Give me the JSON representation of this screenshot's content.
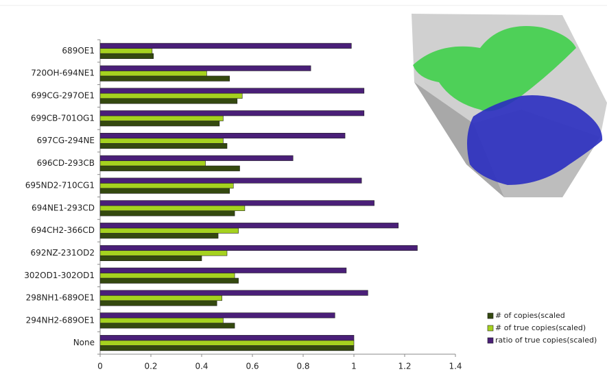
{
  "chart_data": {
    "type": "hbar",
    "categories": [
      "689OE1",
      "720OH-694NE1",
      "699CG-297OE1",
      "699CB-701OG1",
      "697CG-294NE",
      "696CD-293CB",
      "695ND2-710CG1",
      "694NE1-293CD",
      "694CH2-366CD",
      "692NZ-231OD2",
      "302OD1-302OD1",
      "298NH1-689OE1",
      "294NH2-689OE1",
      "None"
    ],
    "series": [
      {
        "name": "# of copies(scaled",
        "color": "#34490f",
        "values": [
          0.21,
          0.51,
          0.54,
          0.47,
          0.5,
          0.55,
          0.51,
          0.53,
          0.465,
          0.4,
          0.545,
          0.46,
          0.53,
          1
        ]
      },
      {
        "name": "# of true copies(scaled)",
        "color": "#a5d21f",
        "values": [
          0.205,
          0.42,
          0.56,
          0.485,
          0.485,
          0.415,
          0.525,
          0.57,
          0.545,
          0.5,
          0.53,
          0.48,
          0.485,
          1
        ]
      },
      {
        "name": "ratio of true copies(scaled)",
        "color": "#4a1f78",
        "values": [
          0.99,
          0.83,
          1.04,
          1.04,
          0.965,
          0.76,
          1.03,
          1.08,
          1.175,
          1.25,
          0.97,
          1.055,
          0.925,
          1
        ]
      }
    ],
    "xlim": [
      0,
      1.4
    ],
    "xticks": [
      0,
      0.2,
      0.4,
      0.6,
      0.8,
      1,
      1.2,
      1.4
    ],
    "legend": "lower-right"
  }
}
